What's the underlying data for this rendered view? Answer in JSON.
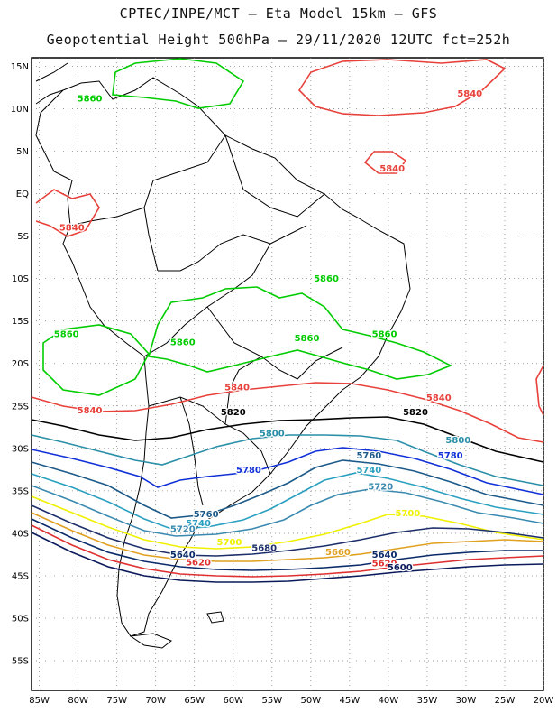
{
  "header": {
    "title_line1": "CPTEC/INPE/MCT –  Eta Model 15km – GFS",
    "title_line2": "Geopotential Height 500hPa – 29/11/2020 12UTC fct=252h"
  },
  "map": {
    "lon_range": [
      -86,
      -20
    ],
    "lat_range": [
      -58.5,
      16
    ],
    "lat_ticks": [
      {
        "lat": 15,
        "label": "15N"
      },
      {
        "lat": 10,
        "label": "10N"
      },
      {
        "lat": 5,
        "label": "5N"
      },
      {
        "lat": 0,
        "label": "EQ"
      },
      {
        "lat": -5,
        "label": "5S"
      },
      {
        "lat": -10,
        "label": "10S"
      },
      {
        "lat": -15,
        "label": "15S"
      },
      {
        "lat": -20,
        "label": "20S"
      },
      {
        "lat": -25,
        "label": "25S"
      },
      {
        "lat": -30,
        "label": "30S"
      },
      {
        "lat": -35,
        "label": "35S"
      },
      {
        "lat": -40,
        "label": "40S"
      },
      {
        "lat": -45,
        "label": "45S"
      },
      {
        "lat": -50,
        "label": "50S"
      },
      {
        "lat": -55,
        "label": "55S"
      }
    ],
    "lon_ticks": [
      {
        "lon": -85,
        "label": "85W"
      },
      {
        "lon": -80,
        "label": "80W"
      },
      {
        "lon": -75,
        "label": "75W"
      },
      {
        "lon": -70,
        "label": "70W"
      },
      {
        "lon": -65,
        "label": "65W"
      },
      {
        "lon": -60,
        "label": "60W"
      },
      {
        "lon": -55,
        "label": "55W"
      },
      {
        "lon": -50,
        "label": "50W"
      },
      {
        "lon": -45,
        "label": "45W"
      },
      {
        "lon": -40,
        "label": "40W"
      },
      {
        "lon": -35,
        "label": "35W"
      },
      {
        "lon": -30,
        "label": "30W"
      },
      {
        "lon": -25,
        "label": "25W"
      },
      {
        "lon": -20,
        "label": "20W"
      }
    ],
    "colors": {
      "5860": "#00cc00",
      "5840": "#e8403a",
      "5820": "#000000",
      "5800": "#2a8fa8",
      "5780": "#1030d8",
      "5760": "#1c5a8a",
      "5740": "#2aa0c0",
      "5720": "#3a8ab0",
      "5700": "#f0f000",
      "5680": "#1c2f6a",
      "5660": "#e0a020",
      "5640": "#0a2a6a",
      "5620": "#e03030",
      "5600": "#0a1a5a",
      "coast": "#000000",
      "grid": "#888888"
    },
    "contour_labels": [
      {
        "value": "5860",
        "lon": -78.5,
        "lat": 11.2
      },
      {
        "value": "5840",
        "lon": -29.5,
        "lat": 11.8
      },
      {
        "value": "5840",
        "lon": -39.5,
        "lat": 3.0
      },
      {
        "value": "5840",
        "lon": -80.8,
        "lat": -4.0
      },
      {
        "value": "5860",
        "lon": -48.0,
        "lat": -10.0
      },
      {
        "value": "5860",
        "lon": -81.5,
        "lat": -16.5
      },
      {
        "value": "5860",
        "lon": -66.5,
        "lat": -17.5
      },
      {
        "value": "5860",
        "lon": -50.5,
        "lat": -17.0
      },
      {
        "value": "5860",
        "lon": -40.5,
        "lat": -16.5
      },
      {
        "value": "5840",
        "lon": -59.5,
        "lat": -22.8
      },
      {
        "value": "5840",
        "lon": -33.5,
        "lat": -24.0
      },
      {
        "value": "5840",
        "lon": -78.5,
        "lat": -25.5
      },
      {
        "value": "5820",
        "lon": -60.0,
        "lat": -25.7
      },
      {
        "value": "5820",
        "lon": -36.5,
        "lat": -25.7
      },
      {
        "value": "5800",
        "lon": -55.0,
        "lat": -28.2
      },
      {
        "value": "5800",
        "lon": -31.0,
        "lat": -29.0
      },
      {
        "value": "5780",
        "lon": -58.0,
        "lat": -32.5
      },
      {
        "value": "5760",
        "lon": -42.5,
        "lat": -30.8
      },
      {
        "value": "5780",
        "lon": -32.0,
        "lat": -30.8
      },
      {
        "value": "5740",
        "lon": -42.5,
        "lat": -32.5
      },
      {
        "value": "5720",
        "lon": -41.0,
        "lat": -34.5
      },
      {
        "value": "5760",
        "lon": -63.5,
        "lat": -37.7
      },
      {
        "value": "5740",
        "lon": -64.5,
        "lat": -38.8
      },
      {
        "value": "5720",
        "lon": -66.5,
        "lat": -39.5
      },
      {
        "value": "5700",
        "lon": -37.5,
        "lat": -37.6
      },
      {
        "value": "5700",
        "lon": -60.5,
        "lat": -41.0
      },
      {
        "value": "5680",
        "lon": -56.0,
        "lat": -41.7
      },
      {
        "value": "5660",
        "lon": -46.5,
        "lat": -42.2
      },
      {
        "value": "5640",
        "lon": -66.5,
        "lat": -42.5
      },
      {
        "value": "5640",
        "lon": -40.5,
        "lat": -42.5
      },
      {
        "value": "5620",
        "lon": -64.5,
        "lat": -43.4
      },
      {
        "value": "5620",
        "lon": -40.5,
        "lat": -43.5
      },
      {
        "value": "5600",
        "lon": -38.5,
        "lat": -44.0
      }
    ]
  }
}
